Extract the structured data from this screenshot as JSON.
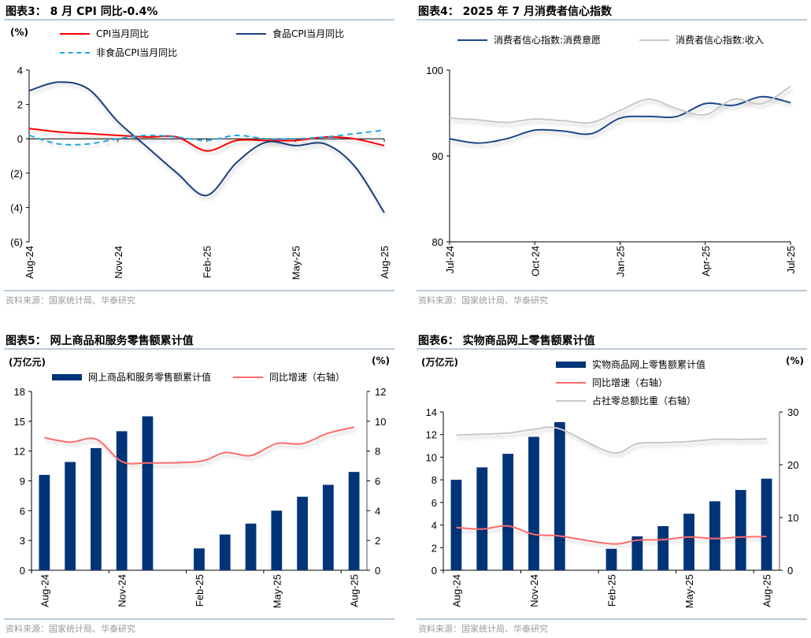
{
  "source": "资料来源：国家统计局、华泰研究",
  "chart_data": [
    {
      "type": "line",
      "title": "图表3：  8 月 CPI 同比-0.4%",
      "unit_left": "(%)",
      "categories": [
        "Aug-24",
        "Sep-24",
        "Oct-24",
        "Nov-24",
        "Dec-24",
        "Jan-25",
        "Feb-25",
        "Mar-25",
        "Apr-25",
        "May-25",
        "Jun-25",
        "Jul-25",
        "Aug-25"
      ],
      "xticks": [
        "Aug-24",
        "Nov-24",
        "Feb-25",
        "May-25",
        "Aug-25"
      ],
      "ylim": [
        -6,
        4
      ],
      "yticks": [
        4,
        2,
        0,
        -2,
        -4,
        -6
      ],
      "ytick_labels": [
        "4",
        "2",
        "0",
        "(2)",
        "(4)",
        "(6)"
      ],
      "series": [
        {
          "name": "CPI当月同比",
          "color": "#ff0000",
          "style": "solid",
          "values": [
            0.6,
            0.4,
            0.3,
            0.2,
            0.1,
            0.1,
            -0.7,
            -0.1,
            -0.1,
            -0.1,
            0.1,
            0.0,
            -0.4
          ]
        },
        {
          "name": "食品CPI当月同比",
          "color": "#1a3f7e",
          "style": "solid",
          "values": [
            2.8,
            3.3,
            2.9,
            1.0,
            -0.5,
            -2.0,
            -3.3,
            -1.4,
            -0.2,
            -0.4,
            -0.3,
            -1.6,
            -4.3
          ]
        },
        {
          "name": "非食品CPI当月同比",
          "color": "#1aa7e6",
          "style": "dashed",
          "values": [
            0.2,
            -0.3,
            -0.3,
            0.0,
            0.2,
            0.1,
            -0.1,
            0.2,
            0.0,
            0.0,
            0.1,
            0.3,
            0.5
          ]
        }
      ]
    },
    {
      "type": "line",
      "title": "图表4：  2025 年 7 月消费者信心指数",
      "categories": [
        "Jul-24",
        "Aug-24",
        "Sep-24",
        "Oct-24",
        "Nov-24",
        "Dec-24",
        "Jan-25",
        "Feb-25",
        "Mar-25",
        "Apr-25",
        "May-25",
        "Jun-25",
        "Jul-25"
      ],
      "xticks": [
        "Jul-24",
        "Oct-24",
        "Jan-25",
        "Apr-25",
        "Jul-25"
      ],
      "ylim": [
        80,
        100
      ],
      "yticks": [
        100,
        90,
        80
      ],
      "ytick_labels": [
        "100",
        "90",
        "80"
      ],
      "series": [
        {
          "name": "消费者信心指数:消费意愿",
          "color": "#1a4a8e",
          "style": "solid",
          "values": [
            92.0,
            91.5,
            92.0,
            93.0,
            92.9,
            92.6,
            94.4,
            94.6,
            94.6,
            96.1,
            95.9,
            96.9,
            96.2
          ]
        },
        {
          "name": "消费者信心指数:收入",
          "color": "#c8c8c8",
          "style": "solid",
          "values": [
            94.4,
            94.2,
            93.9,
            94.3,
            94.1,
            93.9,
            95.3,
            96.6,
            95.5,
            94.8,
            96.6,
            96.1,
            98.1
          ]
        }
      ]
    },
    {
      "type": "bar",
      "title": "图表5：  网上商品和服务零售额累计值",
      "unit_left": "(万亿元)",
      "unit_right": "(%)",
      "categories": [
        "Aug-24",
        "Sep-24",
        "Oct-24",
        "Nov-24",
        "Dec-24",
        "Jan-25",
        "Feb-25",
        "Mar-25",
        "Apr-25",
        "May-25",
        "Jun-25",
        "Jul-25",
        "Aug-25"
      ],
      "xticks": [
        "Aug-24",
        "Nov-24",
        "Feb-25",
        "May-25",
        "Aug-25"
      ],
      "ylim": [
        0,
        18
      ],
      "yticks": [
        18,
        15,
        12,
        9,
        6,
        3,
        0
      ],
      "ytick_labels": [
        "18",
        "15",
        "12",
        "9",
        "6",
        "3",
        "0"
      ],
      "y2lim": [
        0,
        12
      ],
      "y2ticks": [
        12,
        10,
        8,
        6,
        4,
        2,
        0
      ],
      "y2tick_labels": [
        "12",
        "10",
        "8",
        "6",
        "4",
        "2",
        "0"
      ],
      "series": [
        {
          "name": "网上商品和服务零售额累计值",
          "type": "bar",
          "axis": "left",
          "color": "#003478",
          "values": [
            9.6,
            10.9,
            12.3,
            14.0,
            15.5,
            null,
            2.2,
            3.6,
            4.7,
            6.0,
            7.4,
            8.6,
            9.9
          ]
        },
        {
          "name": "同比增速（右轴）",
          "type": "line",
          "axis": "right",
          "color": "#ff6b6b",
          "values": [
            8.9,
            8.6,
            8.8,
            7.3,
            7.2,
            null,
            7.3,
            7.9,
            7.7,
            8.5,
            8.5,
            9.2,
            9.6
          ]
        }
      ]
    },
    {
      "type": "bar",
      "title": "图表6：  实物商品网上零售额累计值",
      "unit_left": "(万亿元)",
      "unit_right": "(%)",
      "categories": [
        "Aug-24",
        "Sep-24",
        "Oct-24",
        "Nov-24",
        "Dec-24",
        "Jan-25",
        "Feb-25",
        "Mar-25",
        "Apr-25",
        "May-25",
        "Jun-25",
        "Jul-25",
        "Aug-25"
      ],
      "xticks": [
        "Aug-24",
        "Nov-24",
        "Feb-25",
        "May-25",
        "Aug-25"
      ],
      "ylim": [
        0,
        14
      ],
      "yticks": [
        14,
        12,
        10,
        8,
        6,
        4,
        2,
        0
      ],
      "ytick_labels": [
        "14",
        "12",
        "10",
        "8",
        "6",
        "4",
        "2",
        "0"
      ],
      "y2lim": [
        0,
        30
      ],
      "y2ticks": [
        30,
        20,
        10,
        0
      ],
      "y2tick_labels": [
        "30",
        "20",
        "10",
        "0"
      ],
      "series": [
        {
          "name": "实物商品网上零售额累计值",
          "type": "bar",
          "axis": "left",
          "color": "#003478",
          "values": [
            8.0,
            9.1,
            10.3,
            11.8,
            13.1,
            null,
            1.9,
            3.0,
            3.9,
            5.0,
            6.1,
            7.1,
            8.1
          ]
        },
        {
          "name": "同比增速（右轴）",
          "type": "line",
          "axis": "right",
          "color": "#ff6b6b",
          "values": [
            8.1,
            7.8,
            8.4,
            6.8,
            6.5,
            null,
            5.0,
            5.7,
            5.8,
            6.3,
            6.0,
            6.3,
            6.4
          ]
        },
        {
          "name": "占社零总额比重（右轴）",
          "type": "line",
          "axis": "right",
          "color": "#c8c8c8",
          "values": [
            25.6,
            25.8,
            26.0,
            26.7,
            26.8,
            null,
            22.3,
            24.0,
            24.2,
            24.4,
            24.8,
            24.8,
            24.9
          ]
        }
      ]
    }
  ]
}
